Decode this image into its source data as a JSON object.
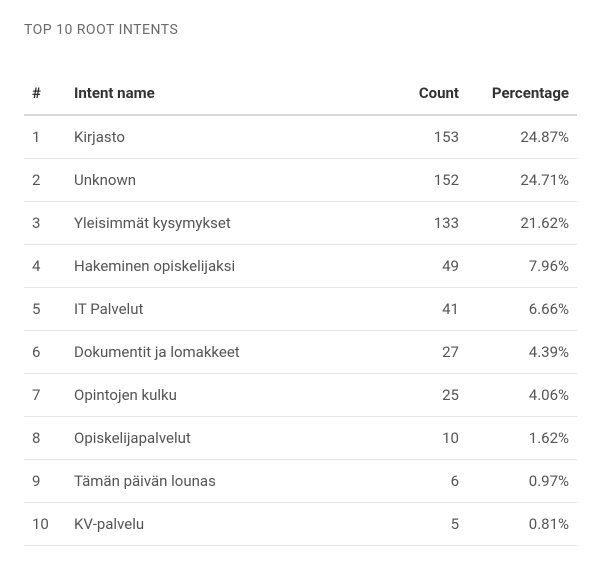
{
  "card": {
    "title": "TOP 10 ROOT INTENTS"
  },
  "table": {
    "columns": {
      "index": "#",
      "name": "Intent name",
      "count": "Count",
      "percentage": "Percentage"
    },
    "rows": [
      {
        "index": "1",
        "name": "Kirjasto",
        "count": "153",
        "percentage": "24.87%"
      },
      {
        "index": "2",
        "name": "Unknown",
        "count": "152",
        "percentage": "24.71%"
      },
      {
        "index": "3",
        "name": "Yleisimmät kysymykset",
        "count": "133",
        "percentage": "21.62%"
      },
      {
        "index": "4",
        "name": "Hakeminen opiskelijaksi",
        "count": "49",
        "percentage": "7.96%"
      },
      {
        "index": "5",
        "name": "IT Palvelut",
        "count": "41",
        "percentage": "6.66%"
      },
      {
        "index": "6",
        "name": "Dokumentit ja lomakkeet",
        "count": "27",
        "percentage": "4.39%"
      },
      {
        "index": "7",
        "name": "Opintojen kulku",
        "count": "25",
        "percentage": "4.06%"
      },
      {
        "index": "8",
        "name": "Opiskelijapalvelut",
        "count": "10",
        "percentage": "1.62%"
      },
      {
        "index": "9",
        "name": "Tämän päivän lounas",
        "count": "6",
        "percentage": "0.97%"
      },
      {
        "index": "10",
        "name": "KV-palvelu",
        "count": "5",
        "percentage": "0.81%"
      }
    ]
  }
}
